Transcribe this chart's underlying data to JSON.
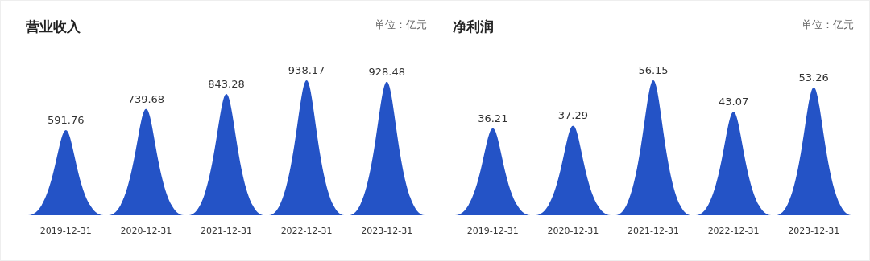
{
  "chart_data": [
    {
      "type": "bar",
      "title": "营业收入",
      "annotations": [
        "单位：亿元"
      ],
      "categories": [
        "2019-12-31",
        "2020-12-31",
        "2021-12-31",
        "2022-12-31",
        "2023-12-31"
      ],
      "values": [
        591.76,
        739.68,
        843.28,
        938.17,
        928.48
      ],
      "color": "#2453c6",
      "data_labels": true
    },
    {
      "type": "bar",
      "title": "净利润",
      "annotations": [
        "单位：亿元"
      ],
      "categories": [
        "2019-12-31",
        "2020-12-31",
        "2021-12-31",
        "2022-12-31",
        "2023-12-31"
      ],
      "values": [
        36.21,
        37.29,
        56.15,
        43.07,
        53.26
      ],
      "color": "#2453c6",
      "data_labels": true
    }
  ]
}
